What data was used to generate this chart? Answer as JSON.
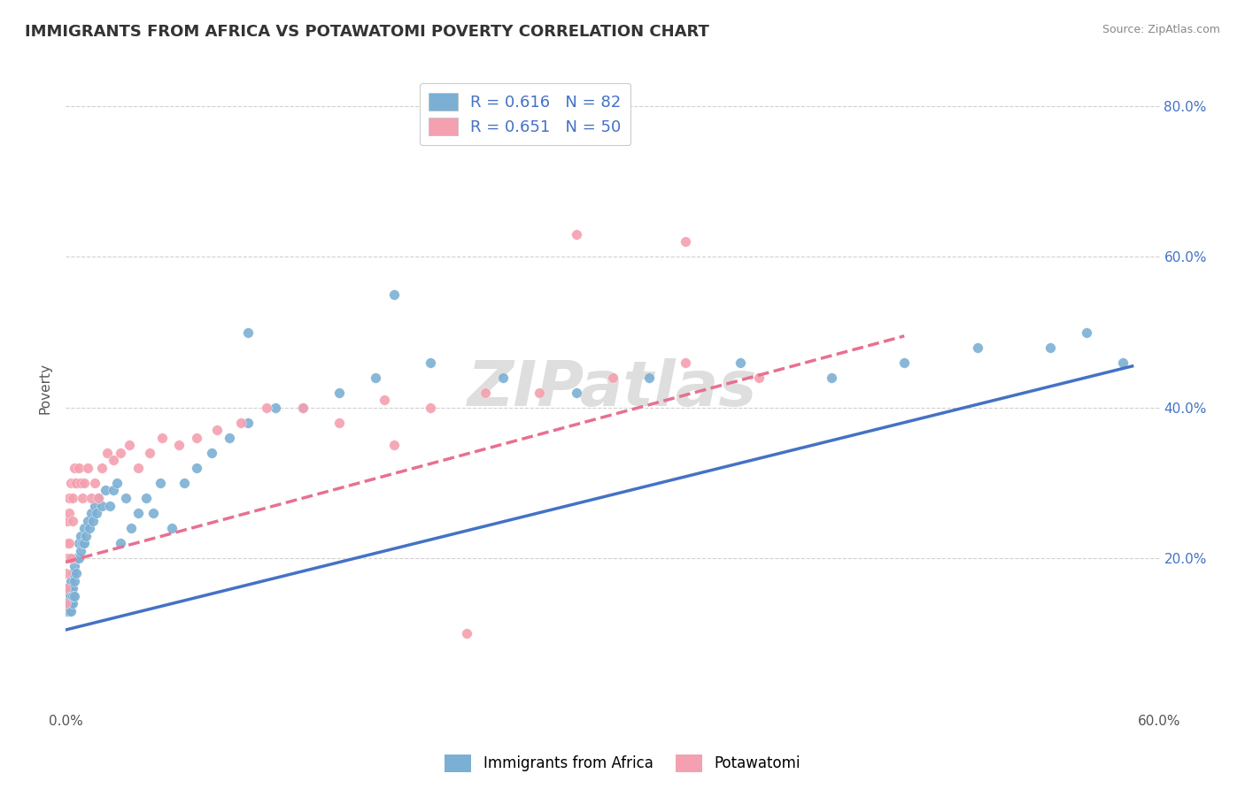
{
  "title": "IMMIGRANTS FROM AFRICA VS POTAWATOMI POVERTY CORRELATION CHART",
  "source_text": "Source: ZipAtlas.com",
  "ylabel": "Poverty",
  "xlim": [
    0.0,
    0.6
  ],
  "ylim": [
    0.0,
    0.85
  ],
  "watermark": "ZIPatlas",
  "series1": {
    "label": "Immigrants from Africa",
    "color": "#7BAFD4",
    "R": 0.616,
    "N": 82,
    "x": [
      0.0,
      0.0,
      0.0,
      0.0,
      0.0,
      0.001,
      0.001,
      0.001,
      0.001,
      0.001,
      0.001,
      0.001,
      0.002,
      0.002,
      0.002,
      0.002,
      0.002,
      0.002,
      0.003,
      0.003,
      0.003,
      0.003,
      0.003,
      0.004,
      0.004,
      0.004,
      0.004,
      0.005,
      0.005,
      0.005,
      0.006,
      0.006,
      0.007,
      0.007,
      0.008,
      0.008,
      0.009,
      0.01,
      0.01,
      0.011,
      0.012,
      0.013,
      0.014,
      0.015,
      0.016,
      0.017,
      0.018,
      0.02,
      0.022,
      0.024,
      0.026,
      0.028,
      0.03,
      0.033,
      0.036,
      0.04,
      0.044,
      0.048,
      0.052,
      0.058,
      0.065,
      0.072,
      0.08,
      0.09,
      0.1,
      0.115,
      0.13,
      0.15,
      0.17,
      0.2,
      0.24,
      0.28,
      0.32,
      0.37,
      0.42,
      0.46,
      0.5,
      0.54,
      0.56,
      0.58,
      0.1,
      0.18
    ],
    "y": [
      0.14,
      0.14,
      0.15,
      0.13,
      0.16,
      0.14,
      0.15,
      0.13,
      0.16,
      0.14,
      0.15,
      0.16,
      0.14,
      0.15,
      0.13,
      0.16,
      0.14,
      0.15,
      0.14,
      0.15,
      0.13,
      0.16,
      0.17,
      0.14,
      0.16,
      0.18,
      0.15,
      0.17,
      0.15,
      0.19,
      0.18,
      0.2,
      0.2,
      0.22,
      0.21,
      0.23,
      0.22,
      0.22,
      0.24,
      0.23,
      0.25,
      0.24,
      0.26,
      0.25,
      0.27,
      0.26,
      0.28,
      0.27,
      0.29,
      0.27,
      0.29,
      0.3,
      0.22,
      0.28,
      0.24,
      0.26,
      0.28,
      0.26,
      0.3,
      0.24,
      0.3,
      0.32,
      0.34,
      0.36,
      0.38,
      0.4,
      0.4,
      0.42,
      0.44,
      0.46,
      0.44,
      0.42,
      0.44,
      0.46,
      0.44,
      0.46,
      0.48,
      0.48,
      0.5,
      0.46,
      0.5,
      0.55
    ]
  },
  "series2": {
    "label": "Potawatomi",
    "color": "#F4A0B0",
    "R": 0.651,
    "N": 50,
    "x": [
      0.0,
      0.0,
      0.0,
      0.001,
      0.001,
      0.001,
      0.002,
      0.002,
      0.002,
      0.003,
      0.003,
      0.004,
      0.004,
      0.005,
      0.005,
      0.006,
      0.007,
      0.008,
      0.009,
      0.01,
      0.012,
      0.014,
      0.016,
      0.018,
      0.02,
      0.023,
      0.026,
      0.03,
      0.035,
      0.04,
      0.046,
      0.053,
      0.062,
      0.072,
      0.083,
      0.096,
      0.11,
      0.13,
      0.15,
      0.175,
      0.2,
      0.23,
      0.26,
      0.3,
      0.34,
      0.38,
      0.34,
      0.28,
      0.22,
      0.18
    ],
    "y": [
      0.14,
      0.16,
      0.18,
      0.2,
      0.22,
      0.25,
      0.28,
      0.22,
      0.26,
      0.2,
      0.3,
      0.25,
      0.28,
      0.3,
      0.32,
      0.3,
      0.32,
      0.3,
      0.28,
      0.3,
      0.32,
      0.28,
      0.3,
      0.28,
      0.32,
      0.34,
      0.33,
      0.34,
      0.35,
      0.32,
      0.34,
      0.36,
      0.35,
      0.36,
      0.37,
      0.38,
      0.4,
      0.4,
      0.38,
      0.41,
      0.4,
      0.42,
      0.42,
      0.44,
      0.46,
      0.44,
      0.62,
      0.63,
      0.1,
      0.35
    ]
  },
  "line1": {
    "x_start": 0.0,
    "x_end": 0.585,
    "y_start": 0.105,
    "y_end": 0.455,
    "color": "#4472C4",
    "linestyle": "-",
    "linewidth": 2.5
  },
  "line2": {
    "x_start": 0.0,
    "x_end": 0.46,
    "y_start": 0.195,
    "y_end": 0.495,
    "color": "#E87090",
    "linestyle": "--",
    "linewidth": 2.5
  },
  "legend_text_color": "#4472C4",
  "title_fontsize": 13,
  "axis_label_fontsize": 11,
  "tick_fontsize": 11,
  "background_color": "#FFFFFF",
  "grid_color": "#CCCCCC",
  "watermark_color": "#DEDEDE",
  "watermark_fontsize": 52,
  "right_ytick_labels": [
    "",
    "20.0%",
    "40.0%",
    "60.0%",
    "80.0%"
  ],
  "right_ytick_values": [
    0.0,
    0.2,
    0.4,
    0.6,
    0.8
  ]
}
